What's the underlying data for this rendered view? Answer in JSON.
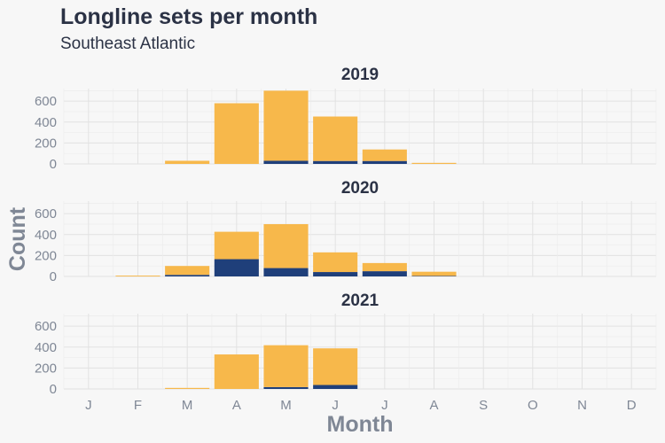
{
  "chart_data": {
    "type": "bar",
    "stacked": true,
    "title": "Longline sets per month",
    "subtitle": "Southeast Atlantic",
    "xlabel": "Month",
    "ylabel": "Count",
    "categories": [
      "J",
      "F",
      "M",
      "A",
      "M",
      "J",
      "J",
      "A",
      "S",
      "O",
      "N",
      "D"
    ],
    "ylim": [
      0,
      720
    ],
    "yticks": [
      0,
      200,
      400,
      600
    ],
    "grid": true,
    "colors": {
      "top": "#f7b84b",
      "bottom": "#1f3f7a"
    },
    "facets": [
      {
        "label": "2019",
        "series": [
          {
            "color_key": "bottom",
            "values": [
              0,
              0,
              0,
              0,
              30,
              28,
              28,
              0,
              0,
              0,
              0,
              0
            ]
          },
          {
            "color_key": "top",
            "values": [
              0,
              0,
              30,
              580,
              670,
              425,
              110,
              10,
              0,
              0,
              0,
              0
            ]
          }
        ]
      },
      {
        "label": "2020",
        "series": [
          {
            "color_key": "bottom",
            "values": [
              0,
              0,
              15,
              165,
              80,
              42,
              50,
              5,
              0,
              0,
              0,
              0
            ]
          },
          {
            "color_key": "top",
            "values": [
              0,
              8,
              85,
              262,
              420,
              188,
              78,
              40,
              0,
              0,
              0,
              0
            ]
          }
        ]
      },
      {
        "label": "2021",
        "series": [
          {
            "color_key": "bottom",
            "values": [
              0,
              0,
              0,
              0,
              18,
              38,
              0,
              0,
              0,
              0,
              0,
              0
            ]
          },
          {
            "color_key": "top",
            "values": [
              0,
              0,
              10,
              330,
              400,
              350,
              0,
              0,
              0,
              0,
              0,
              0
            ]
          }
        ]
      }
    ]
  }
}
